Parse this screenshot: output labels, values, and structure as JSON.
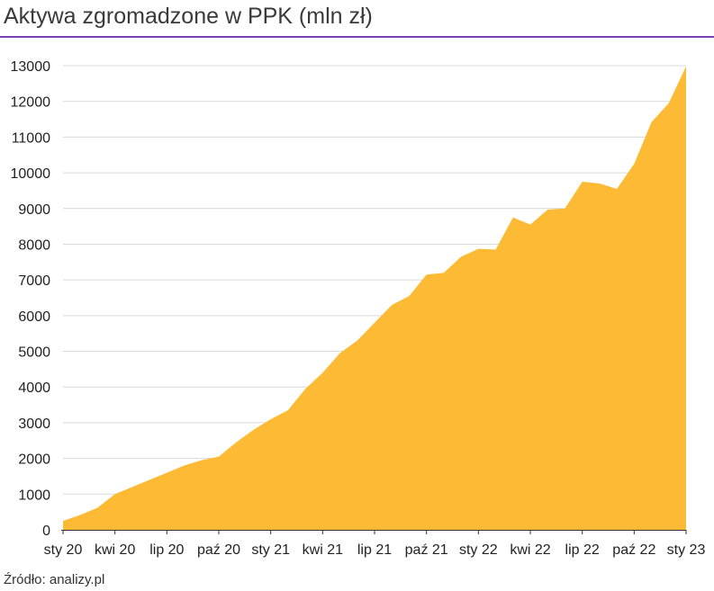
{
  "title": "Aktywa zgromadzone w PPK (mln zł)",
  "source": "Źródło: analizy.pl",
  "colors": {
    "area": "#FDBB35",
    "rule": "#7b3fb5",
    "grid": "#d9d9d9",
    "axis": "#333333"
  },
  "chart_data": {
    "type": "area",
    "title": "Aktywa zgromadzone w PPK (mln zł)",
    "xlabel": "",
    "ylabel": "",
    "ylim": [
      0,
      13000
    ],
    "yticks": [
      0,
      1000,
      2000,
      3000,
      4000,
      5000,
      6000,
      7000,
      8000,
      9000,
      10000,
      11000,
      12000,
      13000
    ],
    "grid": true,
    "x_tick_labels": [
      "sty 20",
      "kwi 20",
      "lip 20",
      "paź 20",
      "sty 21",
      "kwi 21",
      "lip 21",
      "paź 21",
      "sty 22",
      "kwi 22",
      "lip 22",
      "paź 22",
      "sty 23"
    ],
    "x": [
      "2020-01",
      "2020-02",
      "2020-03",
      "2020-04",
      "2020-05",
      "2020-06",
      "2020-07",
      "2020-08",
      "2020-09",
      "2020-10",
      "2020-11",
      "2020-12",
      "2021-01",
      "2021-02",
      "2021-03",
      "2021-04",
      "2021-05",
      "2021-06",
      "2021-07",
      "2021-08",
      "2021-09",
      "2021-10",
      "2021-11",
      "2021-12",
      "2022-01",
      "2022-02",
      "2022-03",
      "2022-04",
      "2022-05",
      "2022-06",
      "2022-07",
      "2022-08",
      "2022-09",
      "2022-10",
      "2022-11",
      "2022-12",
      "2023-01"
    ],
    "values": [
      250,
      420,
      620,
      1000,
      1200,
      1400,
      1600,
      1800,
      1950,
      2050,
      2450,
      2800,
      3100,
      3350,
      3950,
      4400,
      4950,
      5300,
      5800,
      6300,
      6550,
      7150,
      7200,
      7650,
      7870,
      7850,
      8750,
      8550,
      8970,
      9000,
      9750,
      9700,
      9550,
      10250,
      11420,
      11950,
      12980
    ]
  }
}
